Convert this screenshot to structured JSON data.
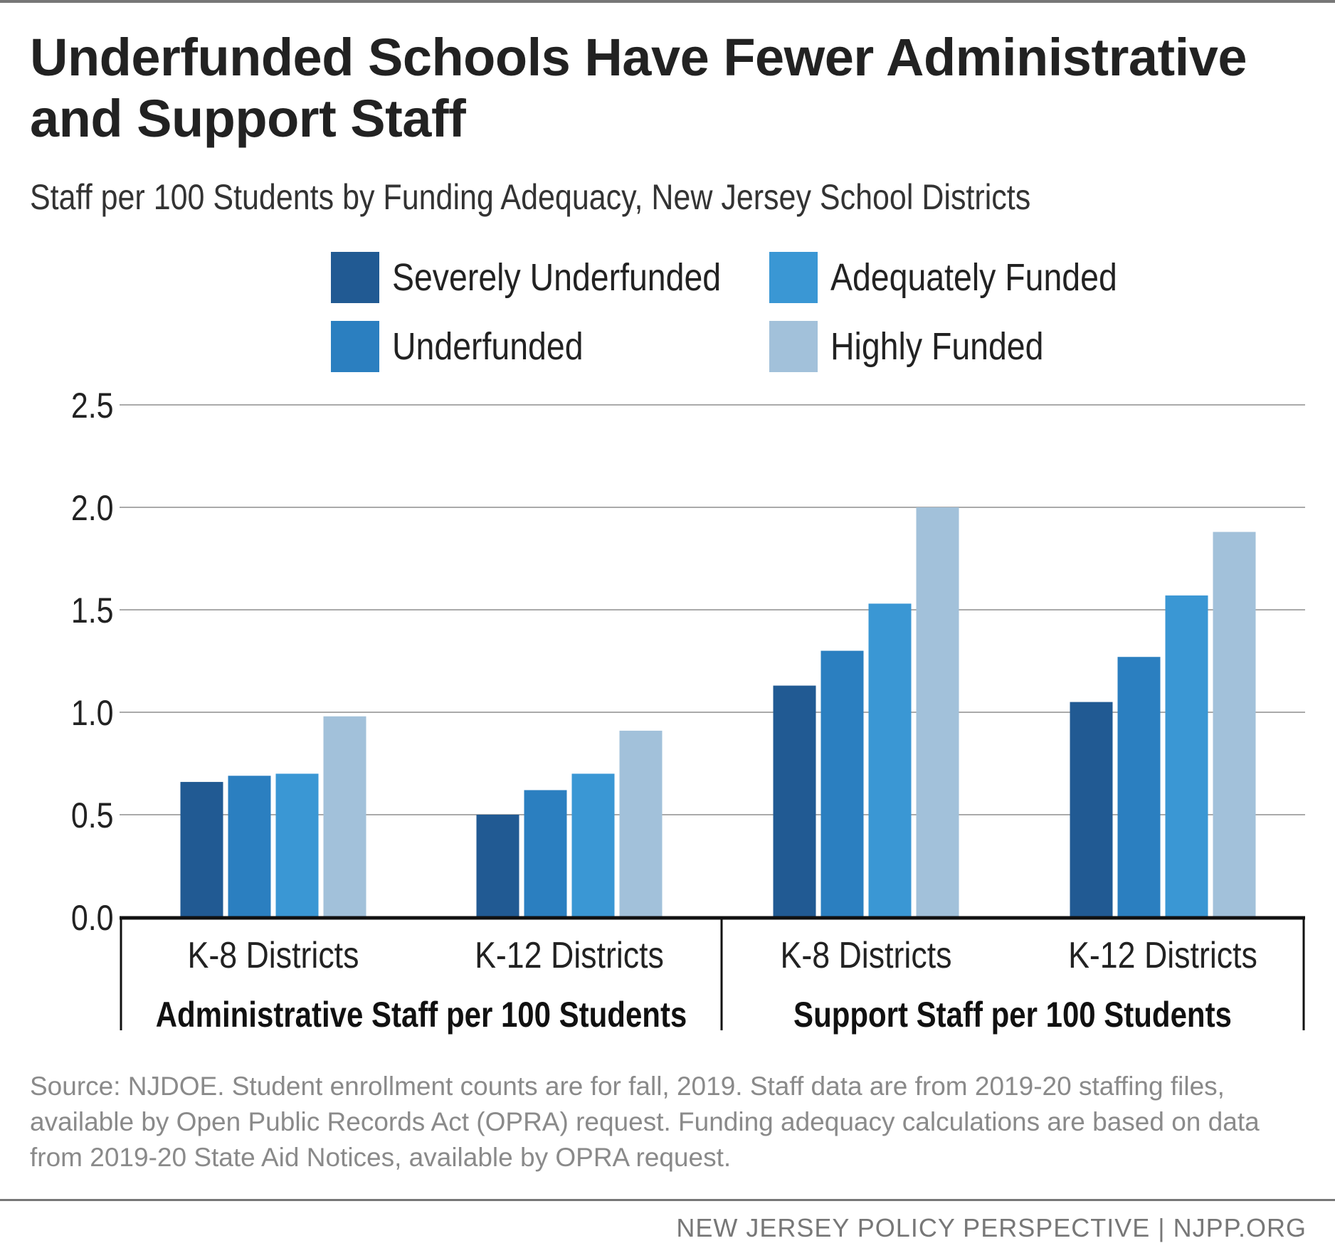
{
  "header": {
    "title": "Underfunded Schools Have Fewer Administrative and Support Staff",
    "subtitle": "Staff per 100 Students by Funding Adequacy, New Jersey School Districts"
  },
  "chart_data": {
    "type": "bar",
    "title": "Underfunded Schools Have Fewer Administrative and Support Staff",
    "subtitle": "Staff per 100 Students by Funding Adequacy, New Jersey School Districts",
    "groups": [
      "Administrative Staff per 100 Students",
      "Support Staff per 100 Students"
    ],
    "categories": [
      "K-8 Districts",
      "K-12 Districts",
      "K-8 Districts",
      "K-12 Districts"
    ],
    "series": [
      {
        "name": "Severely Underfunded",
        "color": "#215a93",
        "values": [
          0.66,
          0.5,
          1.13,
          1.05
        ]
      },
      {
        "name": "Underfunded",
        "color": "#2b7fc0",
        "values": [
          0.69,
          0.62,
          1.3,
          1.27
        ]
      },
      {
        "name": "Adequately Funded",
        "color": "#3a97d4",
        "values": [
          0.7,
          0.7,
          1.53,
          1.57
        ]
      },
      {
        "name": "Highly Funded",
        "color": "#a2c1da",
        "values": [
          0.98,
          0.91,
          2.0,
          1.88
        ]
      }
    ],
    "yticks": [
      "0.0",
      "0.5",
      "1.0",
      "1.5",
      "2.0",
      "2.5"
    ],
    "ylim": [
      0,
      2.5
    ],
    "grid": true,
    "legend": "top",
    "xlabel": "",
    "ylabel": ""
  },
  "source": "Source: NJDOE. Student enrollment counts are for fall, 2019. Staff data are from 2019-20 staffing files, available by Open Public Records Act (OPRA) request. Funding adequacy calculations are based on data from 2019-20 State Aid Notices, available by OPRA request.",
  "footer": "NEW JERSEY POLICY PERSPECTIVE | NJPP.ORG"
}
